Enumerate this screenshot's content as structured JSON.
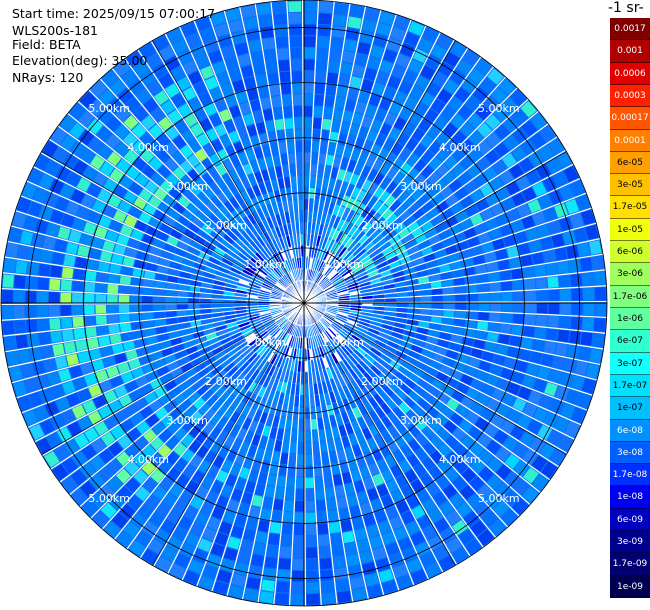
{
  "header": {
    "start_time": "Start time: 2025/09/15 07:00:17",
    "instrument": "WLS200s-181",
    "field": "Field: BETA",
    "elevation": "Elevation(deg): 35.00",
    "nrays": "NRays: 120"
  },
  "colorbar": {
    "unit_label": "-1 sr-",
    "labels": [
      "0.0017",
      "0.001",
      "0.0006",
      "0.0003",
      "0.00017",
      "0.0001",
      "6e-05",
      "3e-05",
      "1.7e-05",
      "1e-05",
      "6e-06",
      "3e-06",
      "1.7e-06",
      "1e-06",
      "6e-07",
      "3e-07",
      "1.7e-07",
      "1e-07",
      "6e-08",
      "3e-08",
      "1.7e-08",
      "1e-08",
      "6e-09",
      "3e-09",
      "1.7e-09",
      "1e-09"
    ],
    "colors": [
      "#800000",
      "#b00000",
      "#e00000",
      "#ff2000",
      "#ff5500",
      "#ff8000",
      "#ffa000",
      "#ffc000",
      "#ffe000",
      "#f0ff10",
      "#d0ff30",
      "#a0ff60",
      "#80ff80",
      "#60ffa0",
      "#30ffd0",
      "#10ffff",
      "#00e0ff",
      "#00c0ff",
      "#0090ff",
      "#0060ff",
      "#0030ff",
      "#0000f0",
      "#0000c0",
      "#000090",
      "#000070",
      "#000050"
    ]
  },
  "chart_data": {
    "type": "heatmap",
    "projection": "polar (PPI scan)",
    "field": "BETA",
    "elevation_deg": 35.0,
    "n_rays": 120,
    "range_rings_km": [
      1.0,
      2.0,
      3.0,
      4.0,
      5.0
    ],
    "range_ring_labels": [
      "1.00km",
      "2.00km",
      "3.00km",
      "4.00km",
      "5.00km"
    ],
    "max_range_km": 5.5,
    "grid": true,
    "colormap": "jet",
    "dominant_value_range": [
      1e-08,
      3e-08
    ],
    "enhanced_regions": [
      {
        "description": "arc",
        "azimuth_deg": [
          220,
          340
        ],
        "range_km": [
          3.2,
          4.6
        ],
        "value": 1.7e-06
      },
      {
        "description": "near NE",
        "azimuth_deg": [
          20,
          70
        ],
        "range_km": [
          1.0,
          2.5
        ],
        "value": 1e-07
      }
    ]
  }
}
